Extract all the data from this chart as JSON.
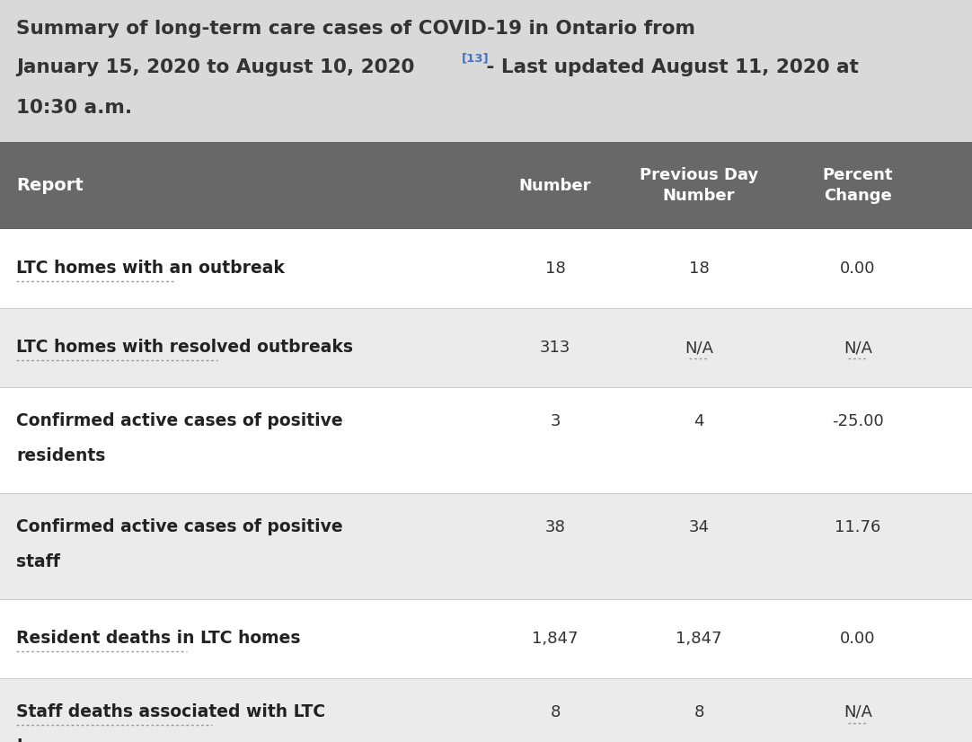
{
  "title_line1": "Summary of long-term care cases of COVID-19 in Ontario from",
  "title_line2_main": "January 15, 2020 to August 10, 2020",
  "title_superscript": "[13]",
  "title_line2_rest": " - Last updated August 11, 2020 at",
  "title_line3": "10:30 a.m.",
  "header_bg": "#686868",
  "title_bg": "#d9d9d9",
  "row_bg_odd": "#ffffff",
  "row_bg_even": "#ebebeb",
  "col_headers": [
    "Report",
    "Number",
    "Previous Day\nNumber",
    "Percent\nChange"
  ],
  "rows": [
    {
      "label": "LTC homes with an outbreak",
      "label2": "",
      "underline_label": true,
      "underline_label2": false,
      "number": "18",
      "prev_number": "18",
      "prev_underline": false,
      "pct_change": "0.00",
      "pct_underline": false,
      "bg": "#ffffff"
    },
    {
      "label": "LTC homes with resolved outbreaks",
      "label2": "",
      "underline_label": true,
      "underline_label2": false,
      "number": "313",
      "prev_number": "N/A",
      "prev_underline": true,
      "pct_change": "N/A",
      "pct_underline": true,
      "bg": "#ebebeb"
    },
    {
      "label": "Confirmed active cases of positive",
      "label2": "residents",
      "underline_label": false,
      "underline_label2": false,
      "number": "3",
      "prev_number": "4",
      "prev_underline": false,
      "pct_change": "-25.00",
      "pct_underline": false,
      "bg": "#ffffff"
    },
    {
      "label": "Confirmed active cases of positive",
      "label2": "staff",
      "underline_label": false,
      "underline_label2": false,
      "number": "38",
      "prev_number": "34",
      "prev_underline": false,
      "pct_change": "11.76",
      "pct_underline": false,
      "bg": "#ebebeb"
    },
    {
      "label": "Resident deaths in LTC homes",
      "label2": "",
      "underline_label": true,
      "underline_label2": false,
      "number": "1,847",
      "prev_number": "1,847",
      "prev_underline": false,
      "pct_change": "0.00",
      "pct_underline": false,
      "bg": "#ffffff"
    },
    {
      "label": "Staff deaths associated with LTC",
      "label2": "homes",
      "underline_label": true,
      "underline_label2": true,
      "number": "8",
      "prev_number": "8",
      "prev_underline": false,
      "pct_change": "N/A",
      "pct_underline": true,
      "bg": "#ebebeb"
    }
  ],
  "fig_width": 10.82,
  "fig_height": 8.26,
  "dpi": 100
}
